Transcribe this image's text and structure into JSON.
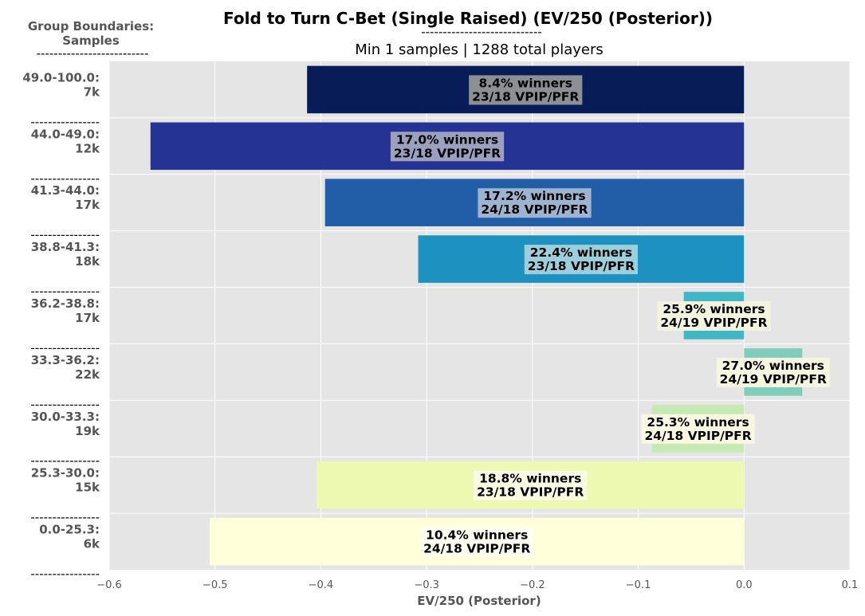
{
  "chart_data": {
    "type": "bar",
    "orientation": "horizontal",
    "title": "Fold to Turn C-Bet (Single Raised) (EV/250 (Posterior))",
    "title_underline": "----------------------------",
    "subtitle": "Min 1 samples | 1288 total players",
    "side_header": {
      "line1": "Group Boundaries:",
      "line2": "Samples",
      "underline": "--------------------------"
    },
    "row_separator": "----------------",
    "xlabel": "EV/250 (Posterior)",
    "xlim": [
      -0.6,
      0.1
    ],
    "xticks": [
      "−0.6",
      "−0.5",
      "−0.4",
      "−0.3",
      "−0.2",
      "−0.1",
      "0.0",
      "0.1"
    ],
    "xtick_values": [
      -0.6,
      -0.5,
      -0.4,
      -0.3,
      -0.2,
      -0.1,
      0.0,
      0.1
    ],
    "grid": true,
    "background": "#e5e5e5",
    "bars": [
      {
        "group": "49.0-100.0:",
        "samples": "7k",
        "value": -0.413,
        "color": "#081d58",
        "line1": "8.4% winners",
        "line2": "23/18 VPIP/PFR",
        "label_box": "#8c8f94"
      },
      {
        "group": "44.0-49.0:",
        "samples": "12k",
        "value": -0.561,
        "color": "#253494",
        "line1": "17.0% winners",
        "line2": "23/18 VPIP/PFR",
        "label_box": "#9aa0be"
      },
      {
        "group": "41.3-44.0:",
        "samples": "17k",
        "value": -0.396,
        "color": "#225ea8",
        "line1": "17.2% winners",
        "line2": "24/18 VPIP/PFR",
        "label_box": "#9db3cf"
      },
      {
        "group": "38.8-41.3:",
        "samples": "18k",
        "value": -0.308,
        "color": "#1d91c0",
        "line1": "22.4% winners",
        "line2": "23/18 VPIP/PFR",
        "label_box": "#9ccfdc"
      },
      {
        "group": "36.2-38.8:",
        "samples": "17k",
        "value": -0.057,
        "color": "#41b6c4",
        "line1": "25.9% winners",
        "line2": "24/19 VPIP/PFR",
        "label_box": "#f2f4df"
      },
      {
        "group": "33.3-36.2:",
        "samples": "22k",
        "value": 0.055,
        "color": "#7fcdbb",
        "line1": "27.0% winners",
        "line2": "24/19 VPIP/PFR",
        "label_box": "#f5f6e0"
      },
      {
        "group": "30.0-33.3:",
        "samples": "19k",
        "value": -0.087,
        "color": "#c7e9b4",
        "line1": "25.3% winners",
        "line2": "24/18 VPIP/PFR",
        "label_box": "#f8f8e2"
      },
      {
        "group": "25.3-30.0:",
        "samples": "15k",
        "value": -0.404,
        "color": "#edf8b1",
        "line1": "18.8% winners",
        "line2": "23/18 VPIP/PFR",
        "label_box": "#fafbe4"
      },
      {
        "group": "0.0-25.3:",
        "samples": "6k",
        "value": -0.505,
        "color": "#ffffd9",
        "line1": "10.4% winners",
        "line2": "24/18 VPIP/PFR",
        "label_box": "#fefef2"
      }
    ]
  }
}
